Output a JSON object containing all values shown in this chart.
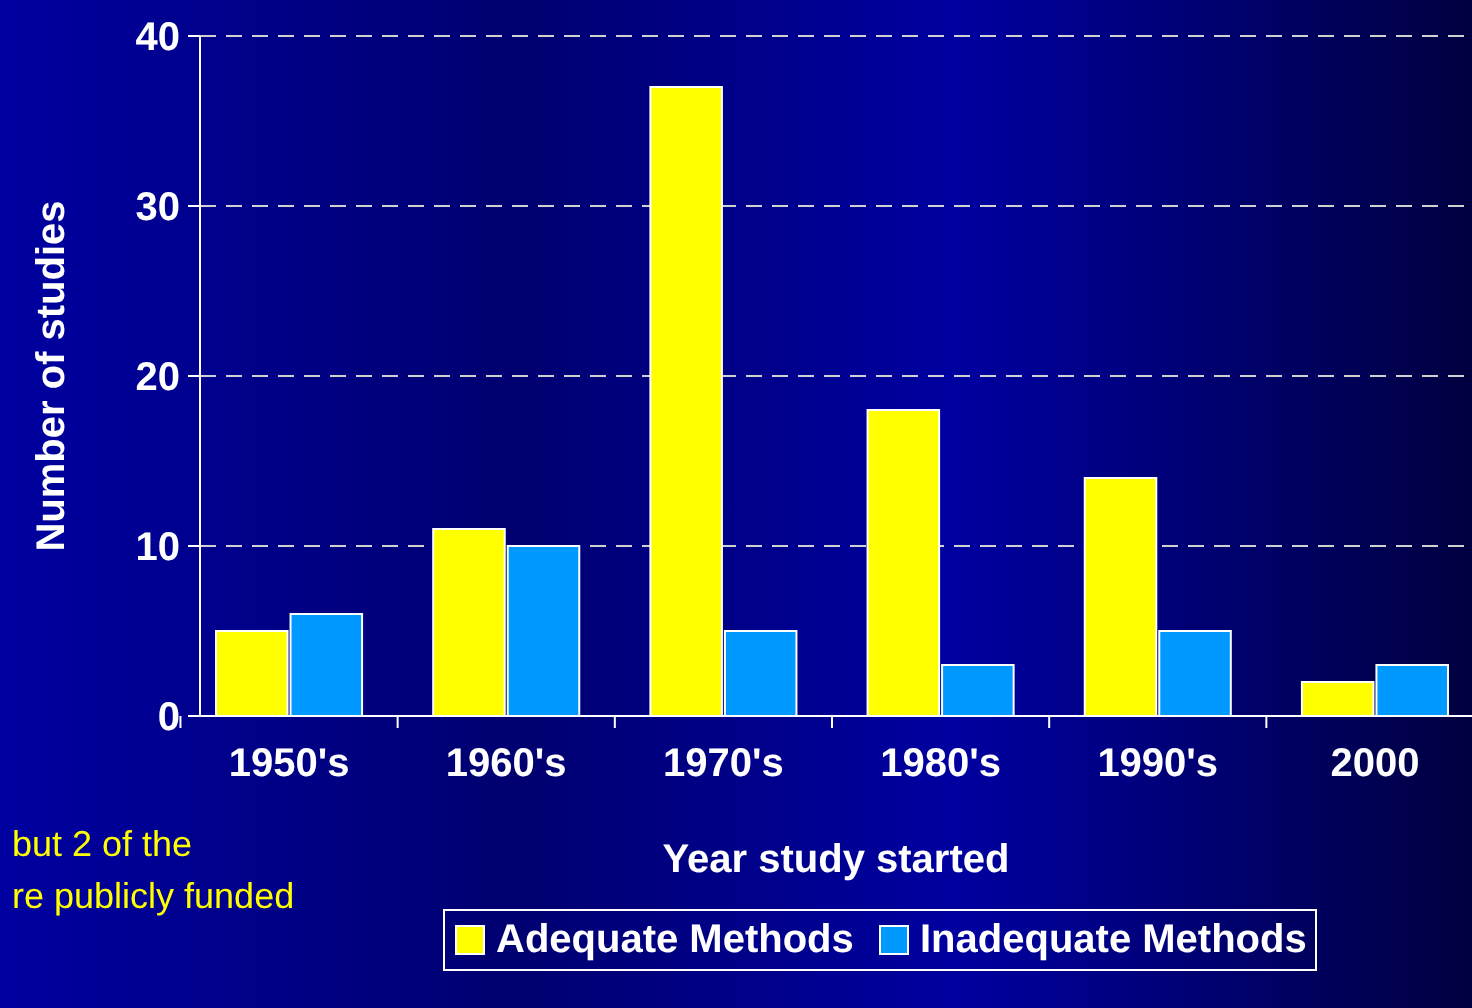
{
  "chart_data": {
    "type": "bar",
    "xlabel": "Year study started",
    "ylabel": "Number of studies",
    "categories": [
      "1950's",
      "1960's",
      "1970's",
      "1980's",
      "1990's",
      "2000"
    ],
    "series": [
      {
        "name": "Adequate Methods",
        "color": "#ffff00",
        "values": [
          5,
          11,
          37,
          18,
          14,
          2
        ]
      },
      {
        "name": "Inadequate Methods",
        "color": "#0099ff",
        "values": [
          6,
          10,
          5,
          3,
          5,
          3
        ]
      }
    ],
    "ylim": [
      0,
      40
    ],
    "yticks": [
      0,
      10,
      20,
      30,
      40
    ],
    "grid": "y",
    "legend": "bottom",
    "annotations": [
      "but 2 of the",
      "re publicly funded"
    ]
  }
}
